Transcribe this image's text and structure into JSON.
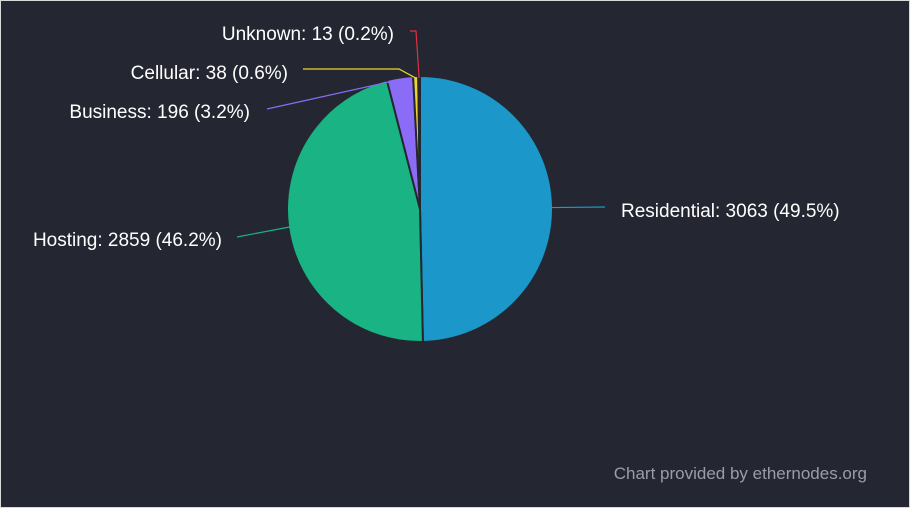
{
  "chart_data": {
    "type": "pie",
    "slices": [
      {
        "name": "Residential",
        "value": 3063,
        "percent": "49.5%",
        "label": "Residential: 3063 (49.5%)",
        "color": "#1b98c9"
      },
      {
        "name": "Hosting",
        "value": 2859,
        "percent": "46.2%",
        "label": "Hosting: 2859 (46.2%)",
        "color": "#1ab383"
      },
      {
        "name": "Business",
        "value": 196,
        "percent": "3.2%",
        "label": "Business: 196 (3.2%)",
        "color": "#8a6cf6"
      },
      {
        "name": "Cellular",
        "value": 38,
        "percent": "0.6%",
        "label": "Cellular: 38 (0.6%)",
        "color": "#f2d230"
      },
      {
        "name": "Unknown",
        "value": 13,
        "percent": "0.2%",
        "label": "Unknown: 13 (0.2%)",
        "color": "#e0323f"
      }
    ],
    "background": "#242731",
    "slice_border": "#242731"
  },
  "credit": "Chart provided by ethernodes.org"
}
